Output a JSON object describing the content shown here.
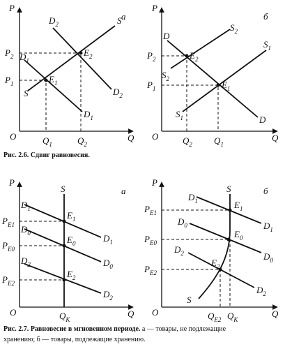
{
  "figure_1": {
    "panels": [
      {
        "letter": "а",
        "axis_p": "P",
        "axis_q": "Q",
        "origin": "O",
        "labels": [
          {
            "main": "S",
            "sub": ""
          },
          {
            "main": "S",
            "sub": ""
          },
          {
            "main": "D",
            "sub": "2"
          },
          {
            "main": "D",
            "sub": "2"
          },
          {
            "main": "D",
            "sub": "1"
          },
          {
            "main": "D",
            "sub": "1"
          },
          {
            "main": "E",
            "sub": "2"
          },
          {
            "main": "E",
            "sub": "1"
          },
          {
            "main": "P",
            "sub": "2"
          },
          {
            "main": "P",
            "sub": "1"
          },
          {
            "main": "Q",
            "sub": "1"
          },
          {
            "main": "Q",
            "sub": "2"
          }
        ]
      },
      {
        "letter": "б",
        "axis_p": "P",
        "axis_q": "Q",
        "origin": "O",
        "labels": [
          {
            "main": "S",
            "sub": "2"
          },
          {
            "main": "S",
            "sub": "2"
          },
          {
            "main": "S",
            "sub": "1"
          },
          {
            "main": "S",
            "sub": "1"
          },
          {
            "main": "D",
            "sub": ""
          },
          {
            "main": "D",
            "sub": ""
          },
          {
            "main": "E",
            "sub": "2"
          },
          {
            "main": "E",
            "sub": "1"
          },
          {
            "main": "P",
            "sub": "2"
          },
          {
            "main": "P",
            "sub": "1"
          },
          {
            "main": "Q",
            "sub": "2"
          },
          {
            "main": "Q",
            "sub": "1"
          }
        ]
      }
    ],
    "caption": {
      "number": "Рис. 2.6.",
      "title": "Сдвиг равновесия."
    }
  },
  "figure_2": {
    "panels": [
      {
        "letter": "а",
        "axis_p": "P",
        "axis_q": "Q",
        "origin": "O",
        "labels": [
          {
            "main": "S",
            "sub": ""
          },
          {
            "main": "D",
            "sub": "1"
          },
          {
            "main": "D",
            "sub": "1"
          },
          {
            "main": "D",
            "sub": "0"
          },
          {
            "main": "D",
            "sub": "0"
          },
          {
            "main": "D",
            "sub": "2"
          },
          {
            "main": "D",
            "sub": "2"
          },
          {
            "main": "E",
            "sub": "1"
          },
          {
            "main": "E",
            "sub": "0"
          },
          {
            "main": "E",
            "sub": "2"
          },
          {
            "main": "P",
            "sub": "E1"
          },
          {
            "main": "P",
            "sub": "E0"
          },
          {
            "main": "P",
            "sub": "E2"
          },
          {
            "main": "Q",
            "sub": "K"
          }
        ]
      },
      {
        "letter": "б",
        "axis_p": "P",
        "axis_q": "Q",
        "origin": "O",
        "labels": [
          {
            "main": "S",
            "sub": ""
          },
          {
            "main": "S",
            "sub": ""
          },
          {
            "main": "D",
            "sub": "1"
          },
          {
            "main": "D",
            "sub": "1"
          },
          {
            "main": "D",
            "sub": "0"
          },
          {
            "main": "D",
            "sub": "0"
          },
          {
            "main": "D",
            "sub": "2"
          },
          {
            "main": "D",
            "sub": "2"
          },
          {
            "main": "E",
            "sub": "1"
          },
          {
            "main": "E",
            "sub": "0"
          },
          {
            "main": "E",
            "sub": "2"
          },
          {
            "main": "P",
            "sub": "E1"
          },
          {
            "main": "P",
            "sub": "E0"
          },
          {
            "main": "P",
            "sub": "E2"
          },
          {
            "main": "Q",
            "sub": "E2"
          },
          {
            "main": "Q",
            "sub": "K"
          }
        ]
      }
    ],
    "caption": {
      "number": "Рис. 2.7.",
      "title": "Равновесие в мгновенном периоде.",
      "lines": [
        "а — товары, не подлежащие",
        "хранению; б — товары, подлежащие хранению."
      ]
    }
  }
}
